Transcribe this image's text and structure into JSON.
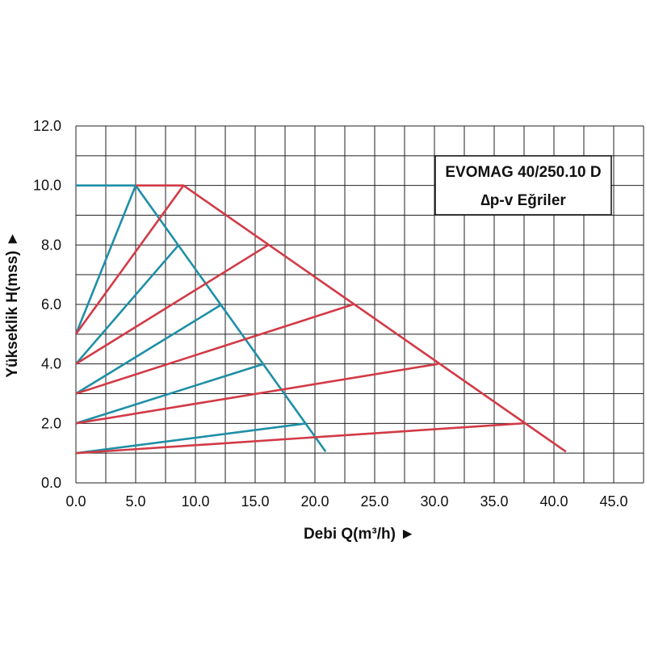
{
  "chart_data": {
    "type": "line",
    "title": "EVOMAG 40/250.10 D",
    "subtitle": "∆p-v Eğriler",
    "xlabel": "Debi Q(m³/h) ►",
    "ylabel": "Yükseklik H(mss) ►",
    "xlim": [
      0,
      47.5
    ],
    "ylim": [
      0,
      12
    ],
    "x_ticks": [
      "0.0",
      "5.0",
      "10.0",
      "15.0",
      "20.0",
      "25.0",
      "30.0",
      "35.0",
      "40.0",
      "45.0"
    ],
    "y_ticks": [
      "0.0",
      "2.0",
      "4.0",
      "6.0",
      "8.0",
      "10.0",
      "12.0"
    ],
    "grid": true,
    "legend_placement": "top-right",
    "colors": {
      "teal": "#1f8fa6",
      "red": "#d23a46",
      "grid": "#222222"
    },
    "series": [
      {
        "color": "teal",
        "points": [
          [
            0,
            10
          ],
          [
            5.0,
            10
          ],
          [
            20.9,
            1.05
          ]
        ]
      },
      {
        "color": "teal",
        "points": [
          [
            0,
            5
          ],
          [
            5.0,
            10
          ]
        ]
      },
      {
        "color": "teal",
        "points": [
          [
            0,
            4
          ],
          [
            8.6,
            8
          ]
        ]
      },
      {
        "color": "teal",
        "points": [
          [
            0,
            3
          ],
          [
            12.2,
            6
          ]
        ]
      },
      {
        "color": "teal",
        "points": [
          [
            0,
            2
          ],
          [
            15.7,
            4
          ]
        ]
      },
      {
        "color": "teal",
        "points": [
          [
            0,
            1
          ],
          [
            19.3,
            2
          ]
        ]
      },
      {
        "color": "red",
        "points": [
          [
            5.0,
            10
          ],
          [
            9.0,
            10
          ],
          [
            41.0,
            1.05
          ]
        ]
      },
      {
        "color": "red",
        "points": [
          [
            0,
            5
          ],
          [
            9.0,
            10
          ]
        ]
      },
      {
        "color": "red",
        "points": [
          [
            0,
            4
          ],
          [
            16.1,
            8
          ]
        ]
      },
      {
        "color": "red",
        "points": [
          [
            0,
            3
          ],
          [
            23.2,
            6
          ]
        ]
      },
      {
        "color": "red",
        "points": [
          [
            0,
            2
          ],
          [
            30.3,
            4
          ]
        ]
      },
      {
        "color": "red",
        "points": [
          [
            0,
            1
          ],
          [
            37.4,
            2
          ]
        ]
      }
    ]
  }
}
